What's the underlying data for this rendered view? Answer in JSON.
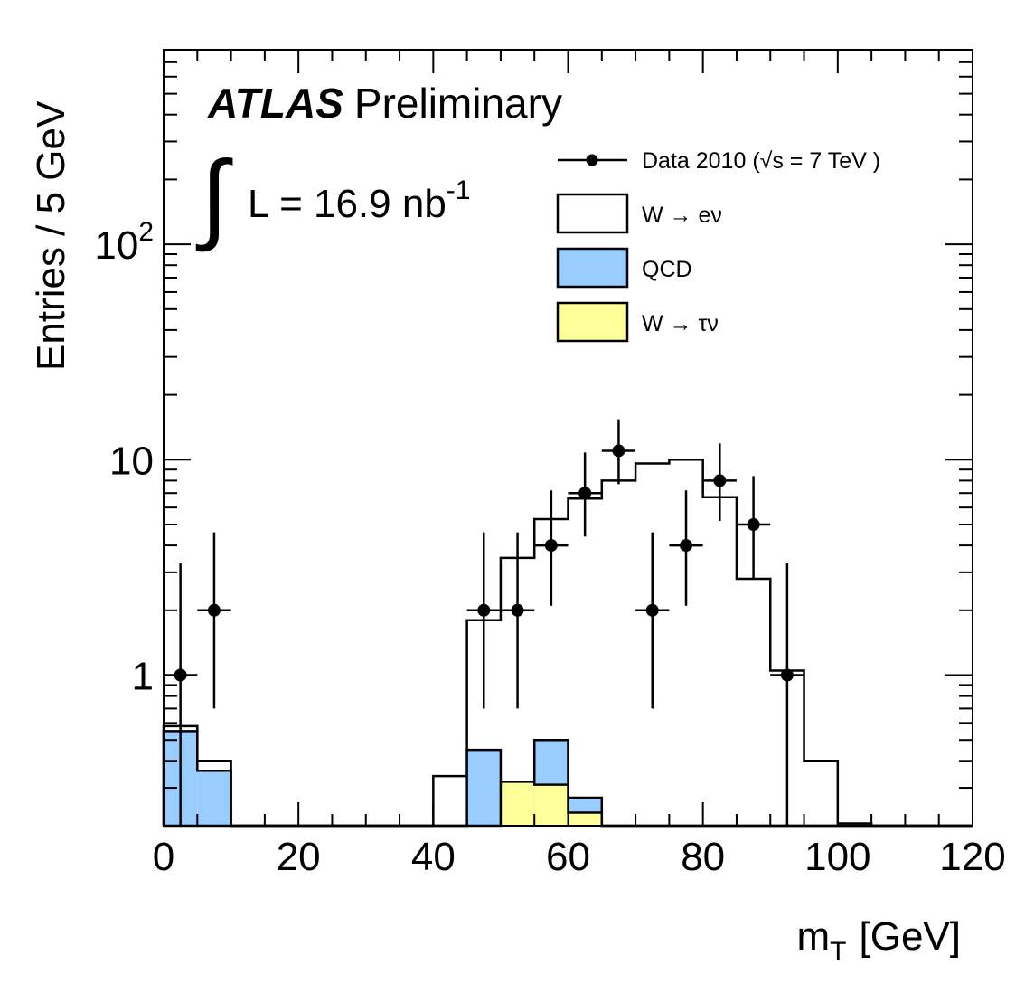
{
  "chart_data": {
    "type": "bar",
    "title": "",
    "experiment": "ATLAS",
    "status": "Preliminary",
    "lumi": {
      "text": "L = 16.9 nb",
      "exponent": "-1"
    },
    "xlabel": {
      "main": "m",
      "sub": "T",
      "unit": "[GeV]"
    },
    "ylabel": "Entries / 5 GeV",
    "xlim": [
      0,
      120
    ],
    "ylim": [
      0.2,
      800
    ],
    "yscale": "log",
    "x_ticks": [
      "0",
      "20",
      "40",
      "60",
      "80",
      "100",
      "120"
    ],
    "y_ticks": [
      {
        "value": 1,
        "base": "1",
        "exp": ""
      },
      {
        "value": 10,
        "base": "10",
        "exp": ""
      },
      {
        "value": 100,
        "base": "10",
        "exp": "2"
      }
    ],
    "bin_edges": [
      0,
      5,
      10,
      15,
      20,
      25,
      30,
      35,
      40,
      45,
      50,
      55,
      60,
      65,
      70,
      75,
      80,
      85,
      90,
      95,
      100,
      105,
      110,
      115,
      120
    ],
    "series": [
      {
        "name": "W → eν",
        "role": "stack_total",
        "color": "#ffffff",
        "values": [
          0.58,
          0.4,
          0,
          0,
          0,
          0,
          0,
          0,
          0.34,
          1.8,
          3.5,
          5.3,
          6.6,
          8.0,
          9.6,
          10.0,
          6.7,
          2.8,
          1.05,
          0.4,
          0.205,
          0,
          0,
          0
        ]
      },
      {
        "name": "QCD",
        "role": "stack_mid",
        "color": "#99ccff",
        "values": [
          0.55,
          0.36,
          0,
          0,
          0,
          0,
          0,
          0,
          0,
          0.45,
          0.32,
          0.5,
          0.27,
          0,
          0,
          0,
          0,
          0,
          0,
          0,
          0,
          0,
          0,
          0
        ]
      },
      {
        "name": "W → τν",
        "role": "stack_bottom",
        "color": "#ffff99",
        "values": [
          0,
          0,
          0,
          0,
          0,
          0,
          0,
          0,
          0,
          0,
          0.32,
          0.31,
          0.23,
          0,
          0,
          0,
          0,
          0,
          0,
          0,
          0,
          0,
          0,
          0
        ]
      }
    ],
    "data_points": {
      "name": "Data 2010",
      "x": [
        2.5,
        7.5,
        47.5,
        52.5,
        57.5,
        62.5,
        67.5,
        72.5,
        77.5,
        82.5,
        87.5,
        92.5
      ],
      "y": [
        1,
        2,
        2,
        2,
        4,
        7,
        11,
        2,
        4,
        8,
        5,
        1
      ],
      "err_up": [
        2.3,
        2.6,
        2.6,
        2.6,
        3.2,
        3.8,
        4.4,
        2.6,
        3.2,
        3.9,
        3.4,
        2.3
      ],
      "err_down": [
        0.83,
        1.3,
        1.3,
        1.3,
        1.9,
        2.6,
        3.3,
        1.3,
        1.9,
        2.8,
        2.2,
        0.83
      ]
    },
    "legend": {
      "position": "top-right",
      "entries": [
        {
          "label": "Data 2010 (√s = 7 TeV )",
          "kind": "marker"
        },
        {
          "label": "W → eν",
          "kind": "box",
          "color": "#ffffff"
        },
        {
          "label": "QCD",
          "kind": "box",
          "color": "#99ccff"
        },
        {
          "label": "W → τν",
          "kind": "box",
          "color": "#ffff99"
        }
      ]
    }
  }
}
